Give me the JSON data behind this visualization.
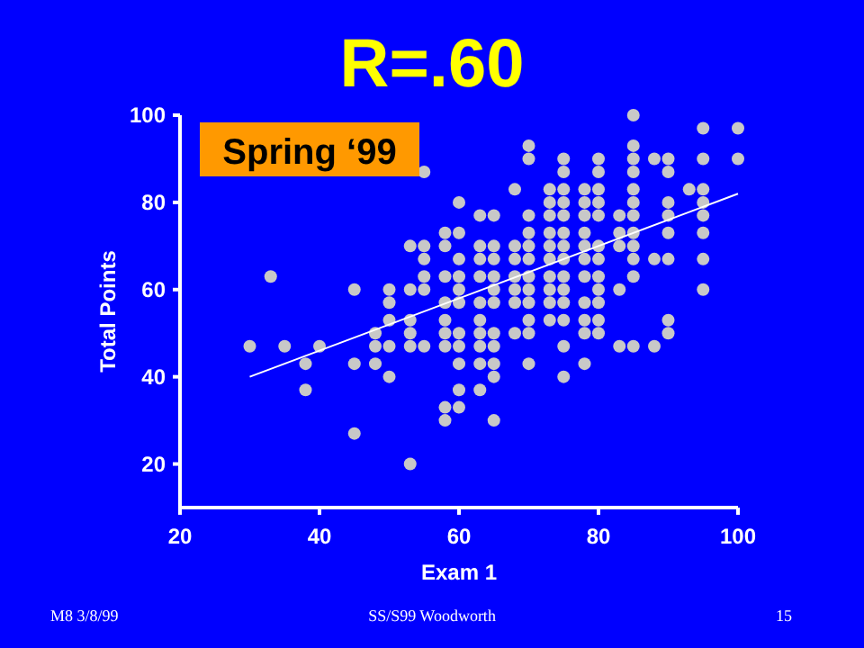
{
  "chart_data": {
    "type": "scatter",
    "title": "R=.60",
    "xlabel": "Exam 1",
    "ylabel": "Total Points",
    "xlim": [
      20,
      100
    ],
    "ylim": [
      10,
      100
    ],
    "xticks": [
      20,
      40,
      60,
      80,
      100
    ],
    "yticks": [
      20,
      40,
      60,
      80,
      100
    ],
    "grid": false,
    "series": [
      {
        "marker": "circle",
        "color": "#c8c8c8",
        "x": [
          85,
          95,
          100,
          70,
          85,
          70,
          75,
          80,
          85,
          88,
          90,
          95,
          100,
          55,
          75,
          80,
          85,
          90,
          68,
          73,
          75,
          78,
          80,
          85,
          93,
          95,
          60,
          73,
          75,
          78,
          80,
          85,
          90,
          95,
          63,
          65,
          70,
          73,
          75,
          78,
          80,
          83,
          85,
          90,
          95,
          58,
          60,
          70,
          73,
          75,
          78,
          83,
          85,
          90,
          95,
          53,
          55,
          58,
          63,
          65,
          68,
          70,
          73,
          75,
          78,
          80,
          83,
          85,
          55,
          60,
          63,
          65,
          68,
          70,
          73,
          75,
          78,
          80,
          85,
          88,
          90,
          95,
          33,
          55,
          58,
          60,
          63,
          65,
          68,
          70,
          73,
          75,
          78,
          80,
          85,
          45,
          50,
          53,
          55,
          60,
          65,
          68,
          70,
          73,
          75,
          80,
          83,
          95,
          50,
          58,
          60,
          63,
          65,
          68,
          70,
          73,
          75,
          78,
          80,
          50,
          53,
          58,
          63,
          70,
          73,
          75,
          78,
          80,
          90,
          48,
          53,
          58,
          60,
          63,
          65,
          68,
          70,
          78,
          80,
          90,
          30,
          35,
          40,
          48,
          50,
          53,
          55,
          58,
          60,
          63,
          65,
          75,
          83,
          85,
          88,
          38,
          45,
          48,
          60,
          63,
          65,
          70,
          78,
          50,
          65,
          75,
          38,
          60,
          63,
          58,
          60,
          58,
          65,
          45,
          53
        ],
        "values": [
          100,
          97,
          97,
          93,
          93,
          90,
          90,
          90,
          90,
          90,
          90,
          90,
          90,
          87,
          87,
          87,
          87,
          87,
          83,
          83,
          83,
          83,
          83,
          83,
          83,
          83,
          80,
          80,
          80,
          80,
          80,
          80,
          80,
          80,
          77,
          77,
          77,
          77,
          77,
          77,
          77,
          77,
          77,
          77,
          77,
          73,
          73,
          73,
          73,
          73,
          73,
          73,
          73,
          73,
          73,
          70,
          70,
          70,
          70,
          70,
          70,
          70,
          70,
          70,
          70,
          70,
          70,
          70,
          67,
          67,
          67,
          67,
          67,
          67,
          67,
          67,
          67,
          67,
          67,
          67,
          67,
          67,
          63,
          63,
          63,
          63,
          63,
          63,
          63,
          63,
          63,
          63,
          63,
          63,
          63,
          60,
          60,
          60,
          60,
          60,
          60,
          60,
          60,
          60,
          60,
          60,
          60,
          60,
          57,
          57,
          57,
          57,
          57,
          57,
          57,
          57,
          57,
          57,
          57,
          53,
          53,
          53,
          53,
          53,
          53,
          53,
          53,
          53,
          53,
          50,
          50,
          50,
          50,
          50,
          50,
          50,
          50,
          50,
          50,
          50,
          47,
          47,
          47,
          47,
          47,
          47,
          47,
          47,
          47,
          47,
          47,
          47,
          47,
          47,
          47,
          43,
          43,
          43,
          43,
          43,
          43,
          43,
          43,
          40,
          40,
          40,
          37,
          37,
          37,
          33,
          33,
          30,
          30,
          27,
          20
        ]
      },
      {
        "type": "line",
        "color": "#ffffff",
        "x": [
          30,
          100
        ],
        "values": [
          40,
          82
        ],
        "line_style": "solid"
      }
    ],
    "annotations": [
      "Spring ‘99",
      "M8 3/8/99",
      "SS/S99 Woodworth",
      "15"
    ]
  }
}
